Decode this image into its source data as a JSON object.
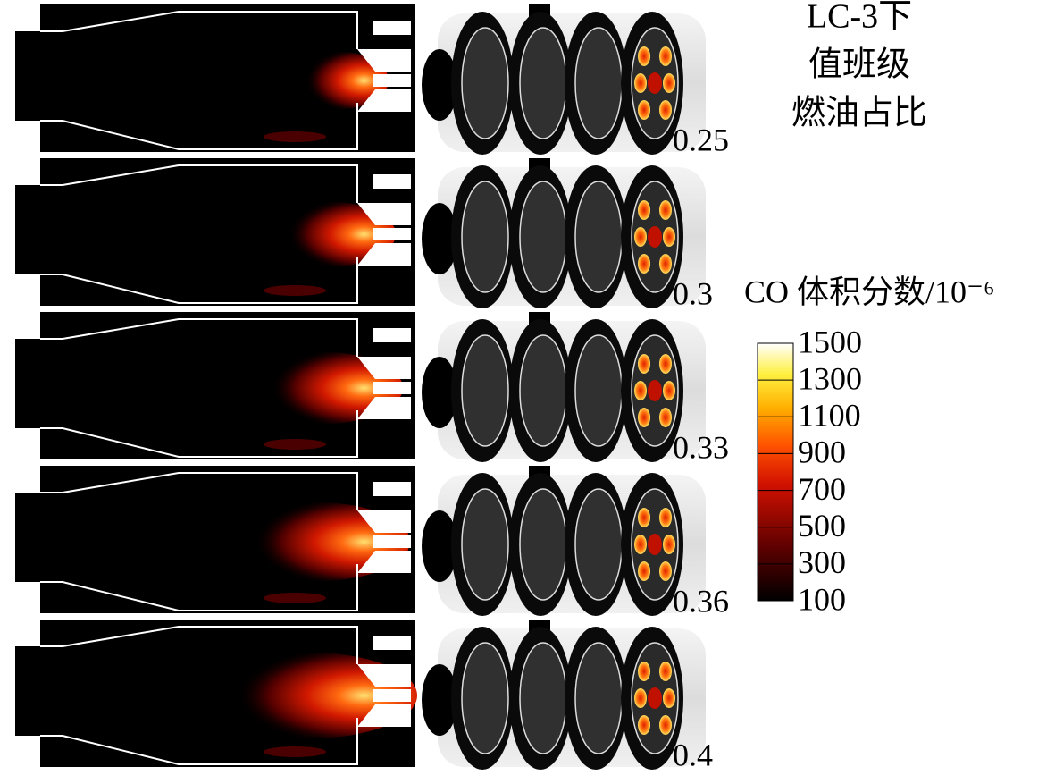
{
  "title": [
    "LC-3下",
    "值班级",
    "燃油占比"
  ],
  "rows": [
    "0.25",
    "0.3",
    "0.33",
    "0.36",
    "0.4"
  ],
  "colorbar": {
    "label": "CO 体积分数/10⁻⁶",
    "lim": [
      100,
      1500
    ],
    "ticks": [
      1500,
      1300,
      1100,
      900,
      700,
      500,
      300,
      100
    ]
  }
}
